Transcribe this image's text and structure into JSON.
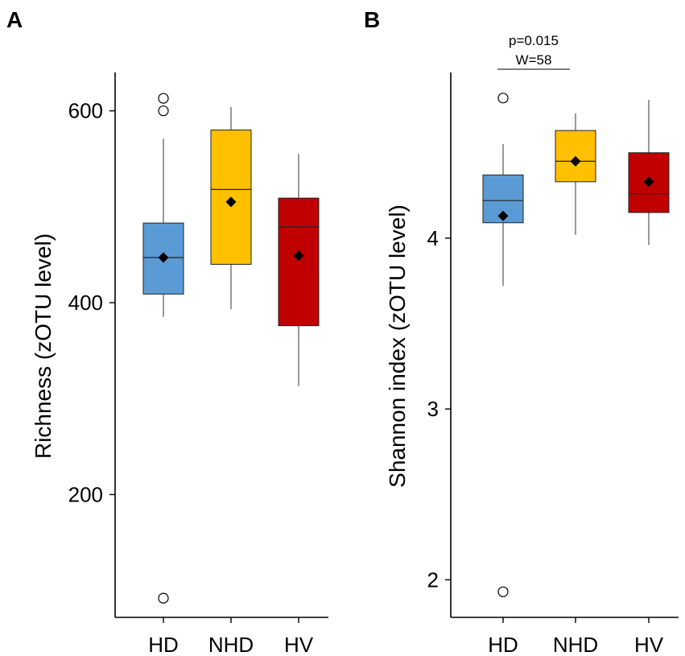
{
  "chart_data": [
    {
      "panel": "A",
      "type": "box",
      "ylabel": "Richness (zOTU level)",
      "xlabel": "",
      "ylim": [
        72,
        640
      ],
      "yticks": [
        200,
        400,
        600
      ],
      "ytick_labels": [
        "200",
        "400",
        "600"
      ],
      "categories": [
        "HD",
        "NHD",
        "HV"
      ],
      "colors": [
        "#5b9bd5",
        "#ffc000",
        "#c00000"
      ],
      "boxes": [
        {
          "group": "HD",
          "whisker_low": 385,
          "q1": 409,
          "median": 447,
          "q3": 483,
          "whisker_high": 571,
          "mean": 447,
          "outliers": [
            600,
            613,
            92
          ]
        },
        {
          "group": "NHD",
          "whisker_low": 393,
          "q1": 440,
          "median": 518,
          "q3": 580,
          "whisker_high": 604,
          "mean": 505,
          "outliers": []
        },
        {
          "group": "HV",
          "whisker_low": 313,
          "q1": 376,
          "median": 479,
          "q3": 509,
          "whisker_high": 555,
          "mean": 449,
          "outliers": []
        }
      ],
      "annotations": []
    },
    {
      "panel": "B",
      "type": "box",
      "ylabel": "Shannon index (zOTU level)",
      "xlabel": "",
      "ylim": [
        1.78,
        4.97
      ],
      "yticks": [
        2,
        3,
        4
      ],
      "ytick_labels": [
        "2",
        "3",
        "4"
      ],
      "categories": [
        "HD",
        "NHD",
        "HV"
      ],
      "colors": [
        "#5b9bd5",
        "#ffc000",
        "#c00000"
      ],
      "boxes": [
        {
          "group": "HD",
          "whisker_low": 3.72,
          "q1": 4.09,
          "median": 4.22,
          "q3": 4.37,
          "whisker_high": 4.55,
          "mean": 4.13,
          "outliers": [
            4.82,
            1.93
          ]
        },
        {
          "group": "NHD",
          "whisker_low": 4.02,
          "q1": 4.33,
          "median": 4.45,
          "q3": 4.63,
          "whisker_high": 4.73,
          "mean": 4.45,
          "outliers": []
        },
        {
          "group": "HV",
          "whisker_low": 3.96,
          "q1": 4.15,
          "median": 4.26,
          "q3": 4.5,
          "whisker_high": 4.81,
          "mean": 4.33,
          "outliers": []
        }
      ],
      "annotations": [
        {
          "from": "HD",
          "to": "NHD",
          "line1": "p=0.015",
          "line2": "W=58"
        }
      ]
    }
  ]
}
